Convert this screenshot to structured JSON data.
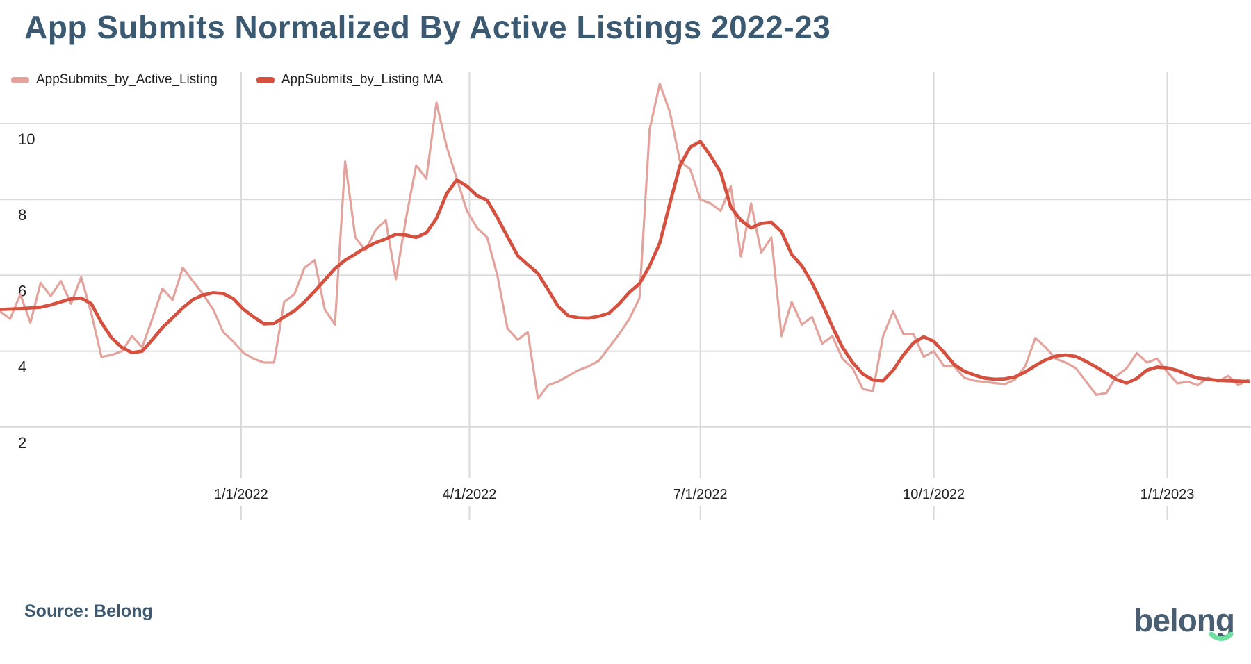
{
  "header": {
    "title": "App Submits Normalized By Active Listings 2022-23"
  },
  "legend": {
    "items": [
      {
        "label": "AppSubmits_by_Active_Listing",
        "color": "#e3a29c"
      },
      {
        "label": "AppSubmits_by_Listing MA",
        "color": "#d5503e"
      }
    ]
  },
  "footer": {
    "source": "Source: Belong",
    "logo_text": "belong"
  },
  "colors": {
    "title": "#3b5a72",
    "gridline": "#d9d9d9",
    "axis_text": "#1f1f1f",
    "logo_text": "#4a5e71",
    "logo_smile": "#6edf9f",
    "series_pink": "#e3a29c",
    "series_red": "#d5503e"
  },
  "chart_data": {
    "type": "line",
    "title": "App Submits Normalized By Active Listings 2022-23",
    "xlabel": "",
    "ylabel": "",
    "grid": true,
    "legend_position": "top-left",
    "start_date": "2021-09-28",
    "step_days": 4,
    "x_axis": {
      "total_days": 493,
      "tick_days": [
        95,
        185,
        276,
        368,
        460
      ],
      "tick_labels": [
        "1/1/2022",
        "4/1/2022",
        "7/1/2022",
        "10/1/2022",
        "1/1/2023"
      ]
    },
    "y_axis": {
      "min": 2,
      "max": 10,
      "ticks": [
        2,
        4,
        6,
        8,
        10
      ]
    },
    "series": [
      {
        "name": "AppSubmits_by_Active_Listing",
        "color": "#e3a29c",
        "stroke_width": 3.2,
        "values": [
          5.05,
          4.85,
          5.5,
          4.75,
          5.8,
          5.45,
          5.85,
          5.25,
          5.95,
          5.0,
          3.85,
          3.9,
          4.0,
          4.4,
          4.1,
          4.85,
          5.65,
          5.35,
          6.2,
          5.85,
          5.5,
          5.1,
          4.5,
          4.25,
          3.95,
          3.8,
          3.7,
          3.7,
          5.3,
          5.5,
          6.2,
          6.4,
          5.1,
          4.7,
          9.0,
          7.0,
          6.65,
          7.2,
          7.45,
          5.9,
          7.5,
          8.9,
          8.55,
          10.55,
          9.4,
          8.55,
          7.7,
          7.25,
          7.0,
          6.0,
          4.6,
          4.3,
          4.5,
          2.75,
          3.1,
          3.2,
          3.35,
          3.5,
          3.6,
          3.75,
          4.1,
          4.45,
          4.85,
          5.4,
          9.85,
          11.05,
          10.3,
          9.0,
          8.8,
          8.0,
          7.9,
          7.7,
          8.35,
          6.5,
          7.9,
          6.6,
          7.0,
          4.4,
          5.3,
          4.7,
          4.9,
          4.2,
          4.4,
          3.8,
          3.55,
          3.0,
          2.95,
          4.4,
          5.05,
          4.45,
          4.45,
          3.85,
          4.0,
          3.6,
          3.6,
          3.3,
          3.22,
          3.19,
          3.16,
          3.13,
          3.25,
          3.6,
          4.35,
          4.1,
          3.8,
          3.7,
          3.55,
          3.2,
          2.85,
          2.9,
          3.35,
          3.55,
          3.95,
          3.7,
          3.8,
          3.45,
          3.15,
          3.2,
          3.1,
          3.3,
          3.2,
          3.35,
          3.1,
          3.25
        ]
      },
      {
        "name": "AppSubmits_by_Listing MA",
        "color": "#d5503e",
        "stroke_width": 4.8,
        "values": [
          5.1,
          5.11,
          5.12,
          5.14,
          5.16,
          5.22,
          5.3,
          5.38,
          5.4,
          5.25,
          4.75,
          4.35,
          4.1,
          3.96,
          4.0,
          4.3,
          4.62,
          4.88,
          5.14,
          5.36,
          5.48,
          5.54,
          5.52,
          5.38,
          5.1,
          4.9,
          4.72,
          4.73,
          4.9,
          5.06,
          5.3,
          5.58,
          5.88,
          6.18,
          6.4,
          6.56,
          6.73,
          6.86,
          6.96,
          7.08,
          7.06,
          7.0,
          7.12,
          7.5,
          8.15,
          8.52,
          8.35,
          8.1,
          7.98,
          7.52,
          7.02,
          6.52,
          6.28,
          6.05,
          5.62,
          5.18,
          4.93,
          4.88,
          4.87,
          4.92,
          5.0,
          5.25,
          5.55,
          5.78,
          6.25,
          6.85,
          7.9,
          8.9,
          9.38,
          9.53,
          9.15,
          8.72,
          7.8,
          7.45,
          7.25,
          7.37,
          7.4,
          7.15,
          6.55,
          6.25,
          5.8,
          5.25,
          4.65,
          4.1,
          3.7,
          3.4,
          3.24,
          3.22,
          3.5,
          3.9,
          4.22,
          4.38,
          4.26,
          3.97,
          3.65,
          3.47,
          3.37,
          3.29,
          3.26,
          3.27,
          3.32,
          3.45,
          3.62,
          3.77,
          3.87,
          3.9,
          3.86,
          3.73,
          3.58,
          3.42,
          3.25,
          3.16,
          3.28,
          3.5,
          3.58,
          3.56,
          3.49,
          3.38,
          3.29,
          3.26,
          3.23,
          3.22,
          3.21,
          3.2
        ]
      }
    ]
  }
}
